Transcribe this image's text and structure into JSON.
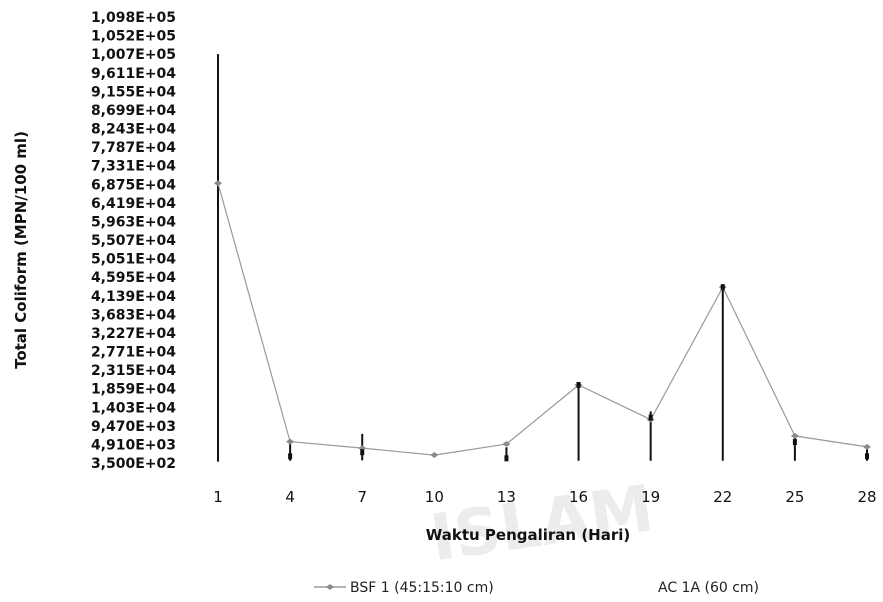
{
  "chart_data": {
    "type": "line",
    "xlabel": "Waktu Pengaliran (Hari)",
    "ylabel": "Total Coliform (MPN/100 ml)",
    "x": [
      1,
      4,
      7,
      10,
      13,
      16,
      19,
      22,
      25,
      28
    ],
    "x_tick_labels": [
      "1",
      "4",
      "7",
      "10",
      "13",
      "16",
      "19",
      "22",
      "25",
      "28"
    ],
    "y_tick_labels": [
      "1,098E+05",
      "1,052E+05",
      "1,007E+05",
      "9,611E+04",
      "9,155E+04",
      "8,699E+04",
      "8,243E+04",
      "7,787E+04",
      "7,331E+04",
      "6,875E+04",
      "6,419E+04",
      "5,963E+04",
      "5,507E+04",
      "5,051E+04",
      "4,595E+04",
      "4,139E+04",
      "3,683E+04",
      "3,227E+04",
      "2,771E+04",
      "2,315E+04",
      "1,859E+04",
      "1,403E+04",
      "9,470E+03",
      "4,910E+03",
      "3,500E+02"
    ],
    "ylim": [
      350,
      109800
    ],
    "legend_position": "bottom",
    "grid": false,
    "series": [
      {
        "name": "BSF 1 (45:15:10 cm)",
        "color": "#9a9a9a",
        "values": [
          69000,
          5600,
          4000,
          2300,
          5000,
          19500,
          11000,
          43500,
          7000,
          4300
        ]
      },
      {
        "name": "AC 1A (60 cm)",
        "color": "#111111",
        "values": [
          null,
          2000,
          3000,
          null,
          1500,
          19500,
          11500,
          43500,
          5500,
          2000
        ],
        "error_high": [
          null,
          5000,
          7500,
          null,
          4200,
          19500,
          13000,
          44000,
          7500,
          3700
        ],
        "error_low": [
          null,
          900,
          1000,
          null,
          900,
          900,
          900,
          900,
          900,
          900
        ]
      }
    ],
    "error_bars_series_1": {
      "x": [
        1
      ],
      "high": [
        100700
      ],
      "low": [
        700
      ]
    }
  },
  "watermark": {
    "text": "ISLAM"
  }
}
